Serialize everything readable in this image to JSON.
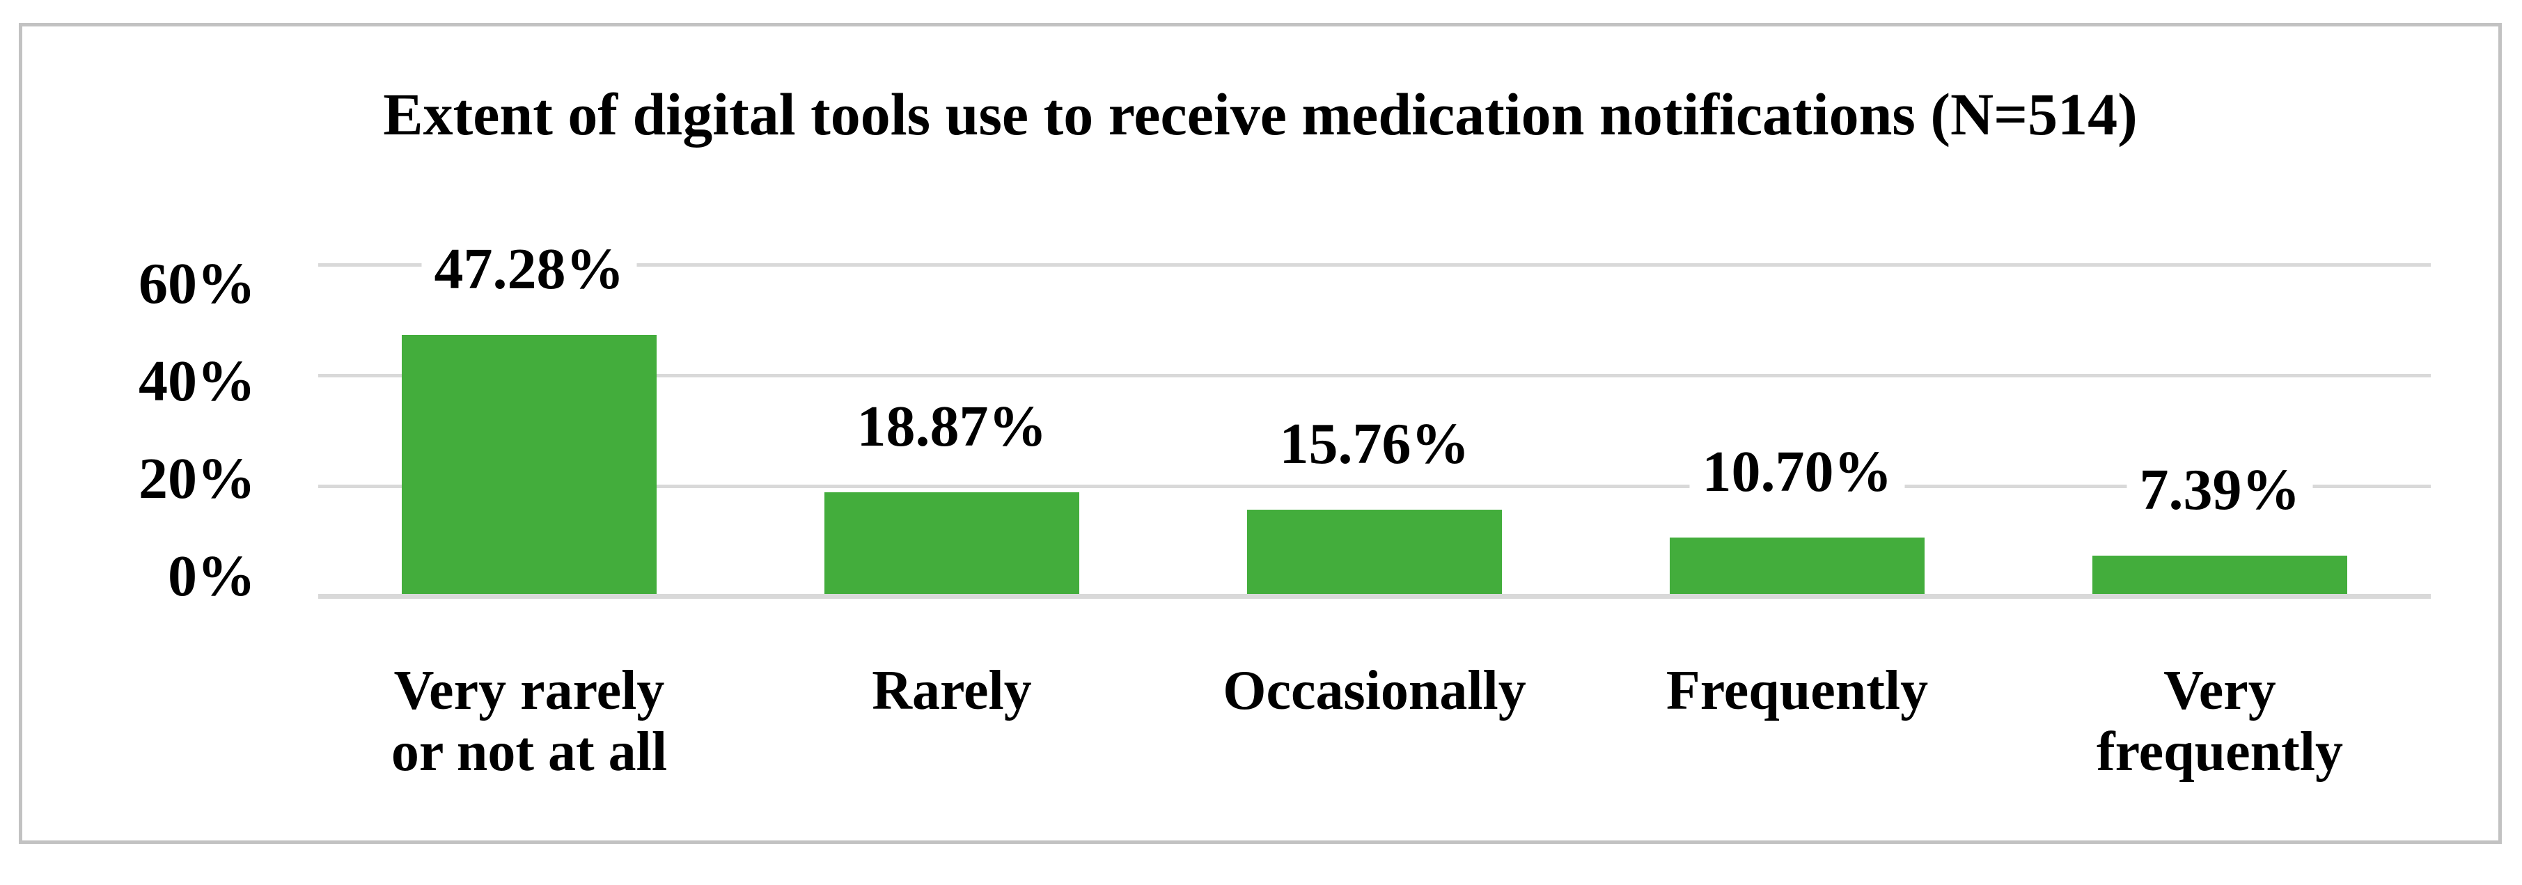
{
  "chart_data": {
    "type": "bar",
    "title": "Extent of digital tools use to receive medication notifications (N=514)",
    "categories": [
      "Very rarely or not at all",
      "Rarely",
      "Occasionally",
      "Frequently",
      "Very frequently"
    ],
    "category_label_lines": [
      [
        "Very rarely",
        "or not at all"
      ],
      [
        "Rarely"
      ],
      [
        "Occasionally"
      ],
      [
        "Frequently"
      ],
      [
        "Very",
        "frequently"
      ]
    ],
    "values": [
      47.28,
      18.87,
      15.76,
      10.7,
      7.39
    ],
    "value_labels": [
      "47.28%",
      "18.87%",
      "15.76%",
      "10.70%",
      "7.39%"
    ],
    "yticks": [
      {
        "value": 60,
        "label": "60%"
      },
      {
        "value": 40,
        "label": "40%"
      },
      {
        "value": 20,
        "label": "20%"
      },
      {
        "value": 0,
        "label": "0%"
      }
    ],
    "ylim": [
      0,
      70
    ],
    "xlabel": "",
    "ylabel": "",
    "grid": "horizontal-major-every-20pct",
    "legend_position": "none",
    "colors": {
      "bar": "#43ad3c",
      "gridline": "#d9d9d9",
      "axis_line": "#d9d9d9",
      "text": "#000000",
      "border": "#c2c2c2",
      "background": "#ffffff"
    }
  }
}
